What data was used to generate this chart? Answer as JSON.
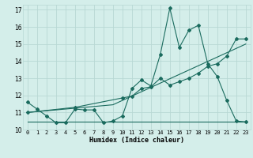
{
  "background_color": "#d4eeea",
  "grid_color": "#b8d8d4",
  "line_color": "#1a6b5e",
  "xlabel": "Humidex (Indice chaleur)",
  "xlim": [
    -0.5,
    23.5
  ],
  "ylim": [
    10,
    17.3
  ],
  "yticks": [
    10,
    11,
    12,
    13,
    14,
    15,
    16,
    17
  ],
  "xticks": [
    0,
    1,
    2,
    3,
    4,
    5,
    6,
    7,
    8,
    9,
    10,
    11,
    12,
    13,
    14,
    15,
    16,
    17,
    18,
    19,
    20,
    21,
    22,
    23
  ],
  "line1_x": [
    0,
    1,
    2,
    3,
    4,
    5,
    6,
    7,
    8,
    9,
    10,
    11,
    12,
    13,
    14,
    15,
    16,
    17,
    18,
    19,
    20,
    21,
    22,
    23
  ],
  "line1_y": [
    11.6,
    11.2,
    10.8,
    10.4,
    10.4,
    11.2,
    11.15,
    11.15,
    10.4,
    10.5,
    10.8,
    12.4,
    12.9,
    12.55,
    14.4,
    17.1,
    14.8,
    15.8,
    16.1,
    13.85,
    13.1,
    11.7,
    10.5,
    10.45
  ],
  "line2_x": [
    0,
    5,
    10,
    11,
    12,
    13,
    14,
    15,
    16,
    17,
    18,
    19,
    20,
    21,
    22,
    23
  ],
  "line2_y": [
    11.0,
    11.3,
    11.85,
    11.95,
    12.4,
    12.5,
    13.0,
    12.6,
    12.8,
    13.0,
    13.3,
    13.7,
    13.85,
    14.3,
    15.3,
    15.3
  ],
  "line3_x": [
    0,
    23
  ],
  "line3_y": [
    10.45,
    10.45
  ],
  "line4_x": [
    0,
    9,
    23
  ],
  "line4_y": [
    11.0,
    11.45,
    15.0
  ]
}
